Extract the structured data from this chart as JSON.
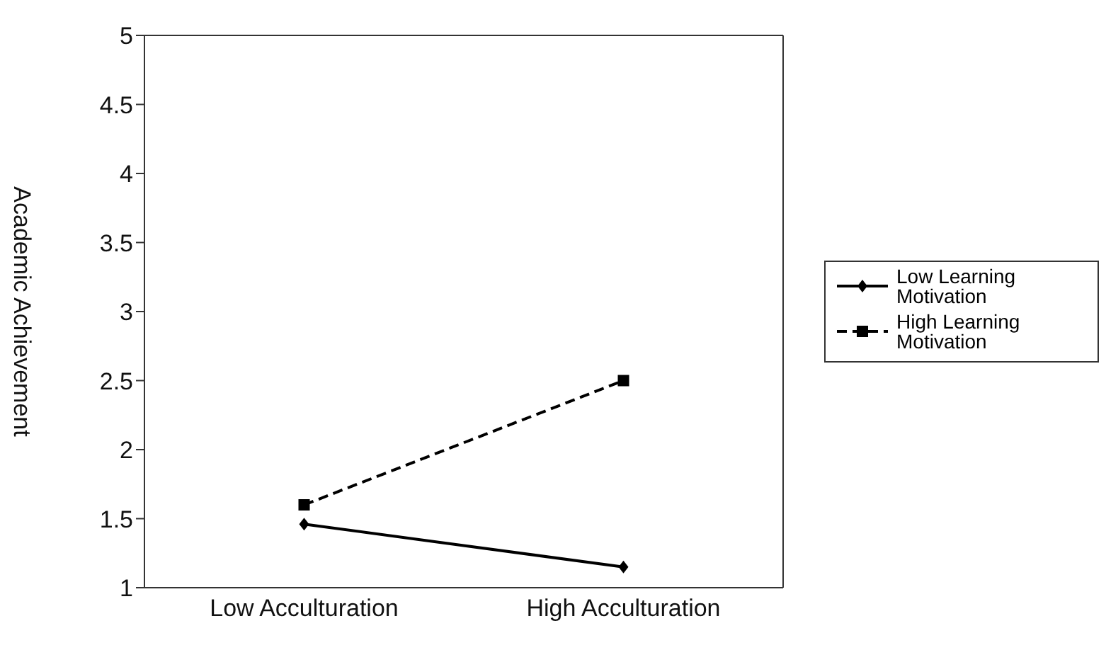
{
  "chart_data": {
    "type": "line",
    "ylabel": "Academic Achievement",
    "categories": [
      "Low Acculturation",
      "High Acculturation"
    ],
    "ylim": [
      1,
      5
    ],
    "yticks": [
      1,
      1.5,
      2,
      2.5,
      3,
      3.5,
      4,
      4.5,
      5
    ],
    "grid": false,
    "legend": "right",
    "series": [
      {
        "name": "Low Learning Motivation",
        "color": "#000000",
        "values": [
          1.46,
          1.15
        ],
        "marker": "diamond",
        "line_style": "solid"
      },
      {
        "name": "High Learning Motivation",
        "color": "#000000",
        "values": [
          1.6,
          2.5
        ],
        "marker": "square",
        "line_style": "dashed"
      }
    ]
  }
}
